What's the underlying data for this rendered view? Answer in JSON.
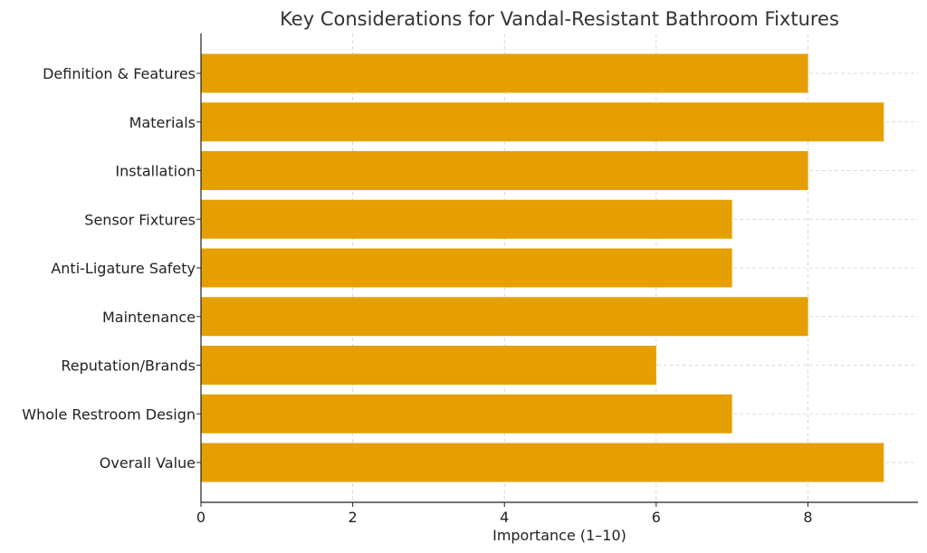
{
  "chart_data": {
    "type": "bar",
    "orientation": "horizontal",
    "title": "Key Considerations for Vandal-Resistant Bathroom Fixtures",
    "xlabel": "Importance (1–10)",
    "ylabel": "",
    "categories": [
      "Definition & Features",
      "Materials",
      "Installation",
      "Sensor Fixtures",
      "Anti-Ligature Safety",
      "Maintenance",
      "Reputation/Brands",
      "Whole Restroom Design",
      "Overall Value"
    ],
    "values": [
      8,
      9,
      8,
      7,
      7,
      8,
      6,
      7,
      9
    ],
    "xlim": [
      0,
      9.45
    ],
    "xticks": [
      0,
      2,
      4,
      6,
      8
    ],
    "grid": true,
    "bar_color": "#E69F00"
  }
}
